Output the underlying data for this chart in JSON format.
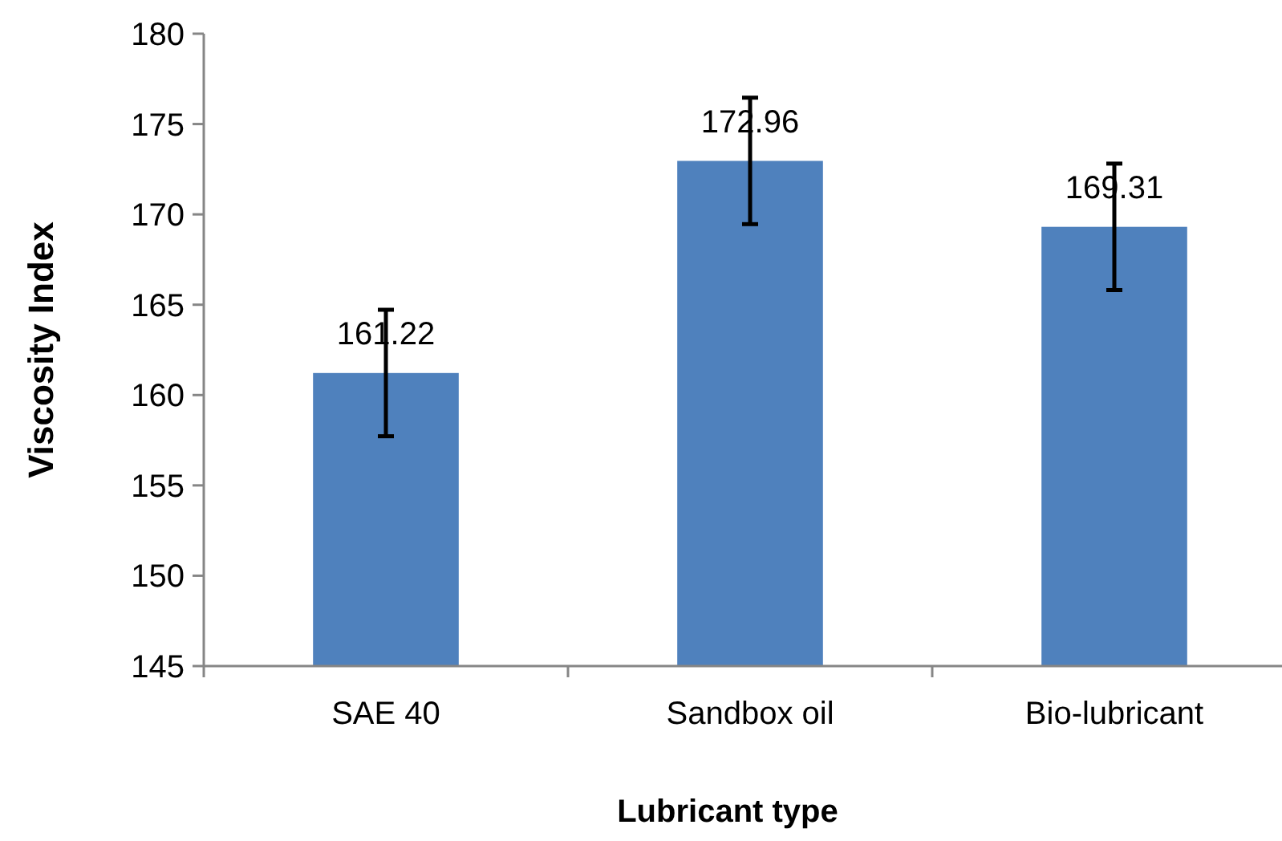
{
  "chart_data": {
    "type": "bar",
    "xlabel": "Lubricant type",
    "ylabel": "Viscosity Index",
    "categories": [
      "SAE 40",
      "Sandbox oil",
      "Bio-lubricant"
    ],
    "values": [
      161.22,
      172.96,
      169.31
    ],
    "errors": [
      3.5,
      3.5,
      3.5
    ],
    "color": "#4f81bd",
    "data_labels": true,
    "ylim": [
      145,
      180
    ],
    "yticks": [
      145,
      150,
      155,
      160,
      165,
      170,
      175,
      180
    ],
    "grid": false
  }
}
